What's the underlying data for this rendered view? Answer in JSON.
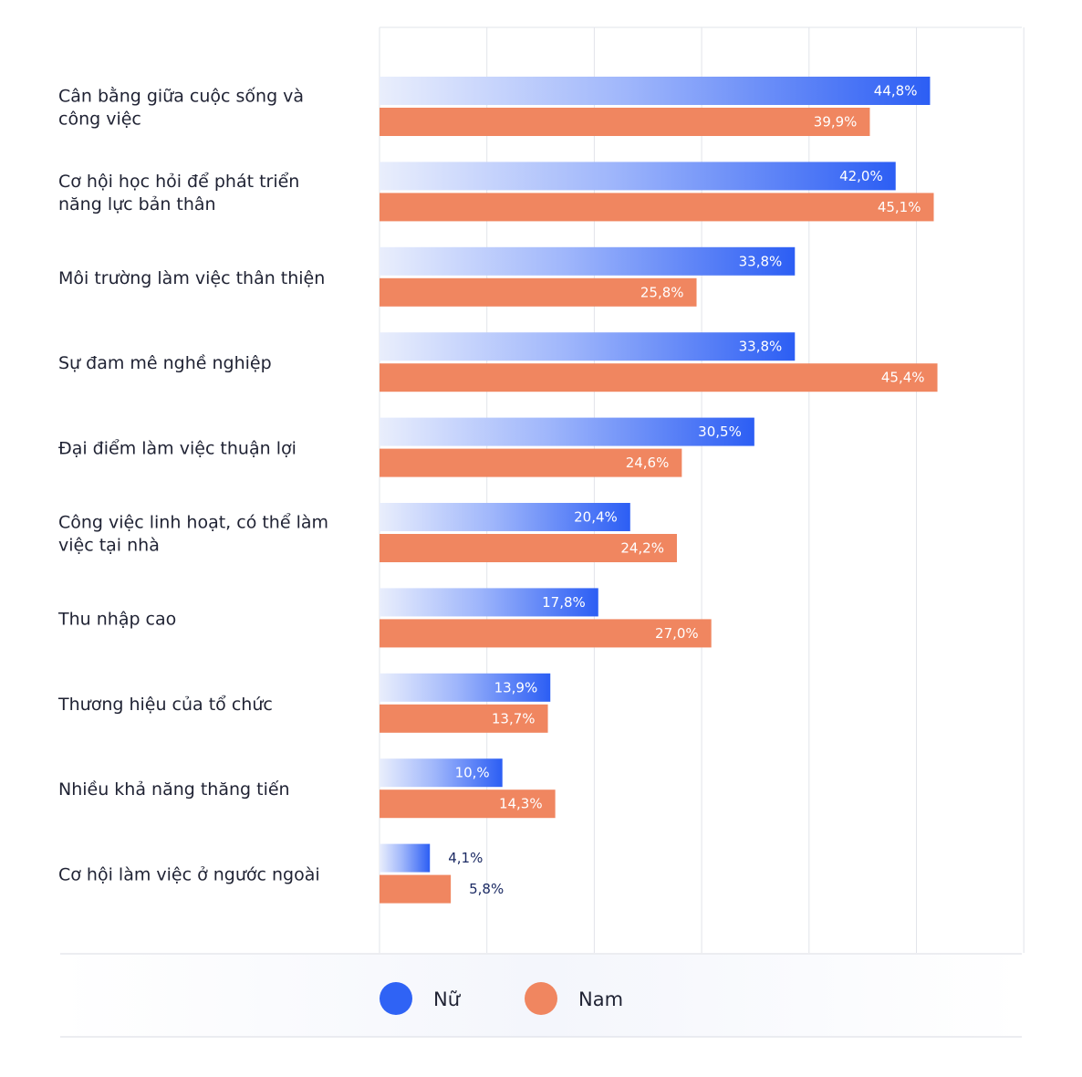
{
  "chart_data": {
    "type": "bar",
    "orientation": "horizontal",
    "categories": [
      [
        "Cân bằng giữa cuộc sống và",
        "công việc"
      ],
      [
        "Cơ hội học hỏi để phát triển",
        "năng lực bản thân"
      ],
      [
        "Môi trường làm việc thân thiện"
      ],
      [
        "Sự đam mê nghề nghiệp"
      ],
      [
        "Đại điểm làm việc thuận lợi"
      ],
      [
        "Công việc linh hoạt, có thể làm",
        "việc tại nhà"
      ],
      [
        "Thu nhập cao"
      ],
      [
        "Thương hiệu của tổ chức"
      ],
      [
        "Nhiều khả năng thăng tiến"
      ],
      [
        "Cơ hội làm việc ở ngước ngoài"
      ]
    ],
    "series": [
      {
        "name": "Nữ",
        "color": "#2f63f5",
        "values": [
          44.8,
          42.0,
          33.8,
          33.8,
          30.5,
          20.4,
          17.8,
          13.9,
          10.0,
          4.1
        ],
        "labels": [
          "44,8%",
          "42,0%",
          "33,8%",
          "33,8%",
          "30,5%",
          "20,4%",
          "17,8%",
          "13,9%",
          "10,%",
          "4,1%"
        ]
      },
      {
        "name": "Nam",
        "color": "#f08660",
        "values": [
          39.9,
          45.1,
          25.8,
          45.4,
          24.6,
          24.2,
          27.0,
          13.7,
          14.3,
          5.8
        ],
        "labels": [
          "39,9%",
          "45,1%",
          "25,8%",
          "45,4%",
          "24,6%",
          "24,2%",
          "27,0%",
          "13,7%",
          "14,3%",
          "5,8%"
        ]
      }
    ],
    "xlim": [
      0,
      52
    ],
    "grid": true,
    "legend": "bottom"
  }
}
